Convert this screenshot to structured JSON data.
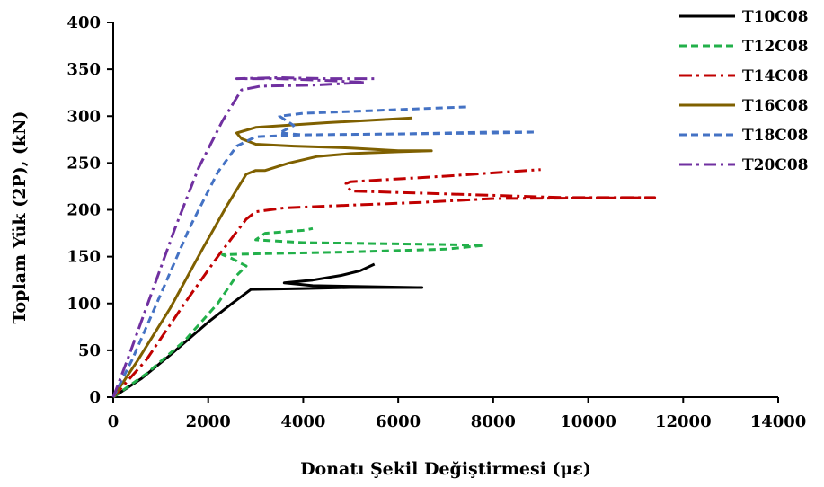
{
  "chart_data": {
    "type": "line",
    "xlabel": "Donatı Şekil Değiştirmesi (με)",
    "ylabel": "Toplam Yük (2P),  (kN)",
    "xlim": [
      0,
      14000
    ],
    "ylim": [
      0,
      400
    ],
    "x_ticks": [
      0,
      2000,
      4000,
      6000,
      8000,
      10000,
      12000,
      14000
    ],
    "y_ticks": [
      0,
      50,
      100,
      150,
      200,
      250,
      300,
      350,
      400
    ],
    "grid": false,
    "legend_position": "top-right",
    "series": [
      {
        "name": "T10C08",
        "color": "#000000",
        "dash": "solid",
        "points": [
          [
            0,
            0
          ],
          [
            600,
            20
          ],
          [
            1200,
            45
          ],
          [
            2000,
            80
          ],
          [
            2500,
            100
          ],
          [
            2900,
            115
          ],
          [
            4000,
            116
          ],
          [
            5000,
            117
          ],
          [
            6500,
            117
          ],
          [
            6400,
            117
          ],
          [
            4200,
            119
          ],
          [
            3600,
            122
          ],
          [
            4200,
            125
          ],
          [
            4800,
            130
          ],
          [
            5200,
            135
          ],
          [
            5500,
            142
          ]
        ]
      },
      {
        "name": "T12C08",
        "color": "#22b04a",
        "dash": "dashed",
        "points": [
          [
            0,
            0
          ],
          [
            700,
            25
          ],
          [
            1500,
            60
          ],
          [
            2200,
            100
          ],
          [
            2600,
            130
          ],
          [
            2800,
            140
          ],
          [
            2500,
            148
          ],
          [
            2300,
            152
          ],
          [
            3000,
            153
          ],
          [
            5000,
            155
          ],
          [
            7000,
            158
          ],
          [
            7800,
            162
          ],
          [
            7000,
            163
          ],
          [
            4000,
            165
          ],
          [
            3000,
            168
          ],
          [
            3200,
            175
          ],
          [
            4000,
            178
          ],
          [
            4200,
            180
          ]
        ]
      },
      {
        "name": "T14C08",
        "color": "#c00000",
        "dash": "dashdot",
        "points": [
          [
            0,
            0
          ],
          [
            700,
            40
          ],
          [
            1500,
            100
          ],
          [
            2200,
            150
          ],
          [
            2800,
            190
          ],
          [
            3000,
            198
          ],
          [
            3300,
            200
          ],
          [
            3600,
            202
          ],
          [
            5000,
            205
          ],
          [
            6500,
            208
          ],
          [
            8000,
            212
          ],
          [
            11400,
            213
          ],
          [
            9500,
            213
          ],
          [
            7000,
            217
          ],
          [
            5000,
            220
          ],
          [
            4900,
            228
          ],
          [
            5000,
            230
          ],
          [
            7000,
            236
          ],
          [
            9000,
            243
          ]
        ]
      },
      {
        "name": "T16C08",
        "color": "#7f6000",
        "dash": "solid",
        "points": [
          [
            0,
            0
          ],
          [
            500,
            38
          ],
          [
            1200,
            95
          ],
          [
            1900,
            160
          ],
          [
            2400,
            205
          ],
          [
            2800,
            238
          ],
          [
            3000,
            242
          ],
          [
            3200,
            242
          ],
          [
            3700,
            250
          ],
          [
            4300,
            257
          ],
          [
            5000,
            260
          ],
          [
            6000,
            262
          ],
          [
            6700,
            263
          ],
          [
            6000,
            263
          ],
          [
            5000,
            266
          ],
          [
            3800,
            268
          ],
          [
            3000,
            270
          ],
          [
            2700,
            276
          ],
          [
            2600,
            282
          ],
          [
            3000,
            288
          ],
          [
            4500,
            293
          ],
          [
            6300,
            298
          ]
        ]
      },
      {
        "name": "T18C08",
        "color": "#4472c4",
        "dash": "dashed",
        "points": [
          [
            0,
            0
          ],
          [
            400,
            40
          ],
          [
            1000,
            110
          ],
          [
            1600,
            180
          ],
          [
            2200,
            240
          ],
          [
            2600,
            268
          ],
          [
            3000,
            278
          ],
          [
            4000,
            280
          ],
          [
            6000,
            281
          ],
          [
            8000,
            283
          ],
          [
            8900,
            283
          ],
          [
            8000,
            282
          ],
          [
            6000,
            281
          ],
          [
            4000,
            280
          ],
          [
            3500,
            282
          ],
          [
            3800,
            290
          ],
          [
            3500,
            300
          ],
          [
            4000,
            303
          ],
          [
            5500,
            306
          ],
          [
            7500,
            310
          ]
        ]
      },
      {
        "name": "T20C08",
        "color": "#7030a0",
        "dash": "dashdot",
        "points": [
          [
            0,
            0
          ],
          [
            300,
            40
          ],
          [
            800,
            110
          ],
          [
            1300,
            180
          ],
          [
            1800,
            245
          ],
          [
            2300,
            295
          ],
          [
            2700,
            328
          ],
          [
            3100,
            332
          ],
          [
            4200,
            333
          ],
          [
            5300,
            336
          ],
          [
            4500,
            338
          ],
          [
            3500,
            340
          ],
          [
            2600,
            340
          ],
          [
            3500,
            341
          ],
          [
            4500,
            340
          ],
          [
            5500,
            340
          ]
        ]
      }
    ]
  }
}
